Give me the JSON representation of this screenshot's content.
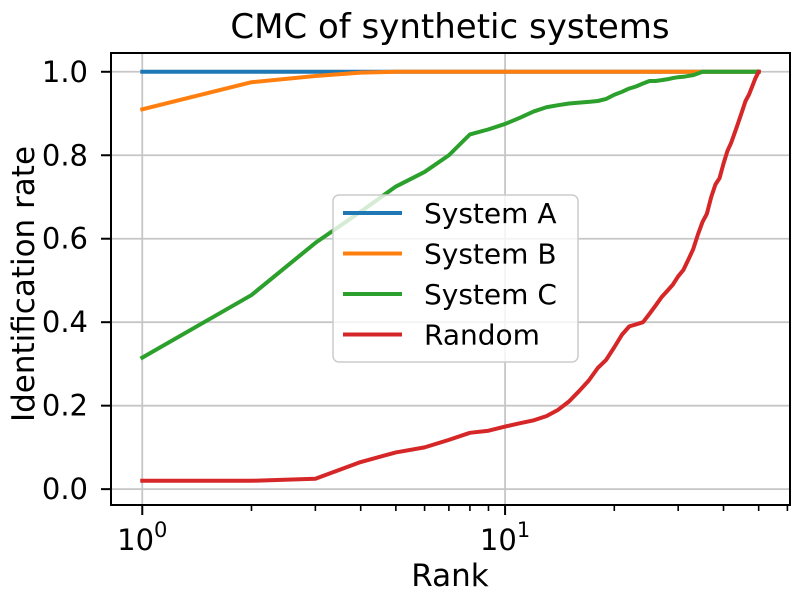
{
  "chart_data": {
    "type": "line",
    "title": "CMC of synthetic systems",
    "xlabel": "Rank",
    "ylabel": "Identification rate",
    "xscale": "log",
    "xlim": [
      0.82,
      61
    ],
    "ylim": [
      -0.038,
      1.045
    ],
    "grid": true,
    "grid_color": "#c6c6c6",
    "axis_color": "#000000",
    "x_major_ticks": [
      {
        "value": 1,
        "base": "10",
        "exp": "0"
      },
      {
        "value": 10,
        "base": "10",
        "exp": "1"
      }
    ],
    "x_minor_ticks": [
      2,
      3,
      4,
      5,
      6,
      7,
      8,
      9,
      20,
      30,
      40,
      50,
      60
    ],
    "y_ticks": [
      {
        "value": 0.0,
        "label": "0.0"
      },
      {
        "value": 0.2,
        "label": "0.2"
      },
      {
        "value": 0.4,
        "label": "0.4"
      },
      {
        "value": 0.6,
        "label": "0.6"
      },
      {
        "value": 0.8,
        "label": "0.8"
      },
      {
        "value": 1.0,
        "label": "1.0"
      }
    ],
    "legend": {
      "position": "center",
      "border_color": "#cccccc",
      "background": "rgba(255,255,255,0.8)"
    },
    "x": [
      1,
      2,
      3,
      4,
      5,
      6,
      7,
      8,
      9,
      10,
      11,
      12,
      13,
      14,
      15,
      16,
      17,
      18,
      19,
      20,
      21,
      22,
      23,
      24,
      25,
      26,
      27,
      28,
      29,
      30,
      31,
      32,
      33,
      34,
      35,
      36,
      37,
      38,
      39,
      40,
      41,
      42,
      43,
      44,
      45,
      46,
      47,
      48,
      49,
      50
    ],
    "series": [
      {
        "name": "System A",
        "color": "#1f77b4",
        "values": [
          1.0,
          1.0,
          1.0,
          1.0,
          1.0,
          1.0,
          1.0,
          1.0,
          1.0,
          1.0,
          1.0,
          1.0,
          1.0,
          1.0,
          1.0,
          1.0,
          1.0,
          1.0,
          1.0,
          1.0,
          1.0,
          1.0,
          1.0,
          1.0,
          1.0,
          1.0,
          1.0,
          1.0,
          1.0,
          1.0,
          1.0,
          1.0,
          1.0,
          1.0,
          1.0,
          1.0,
          1.0,
          1.0,
          1.0,
          1.0,
          1.0,
          1.0,
          1.0,
          1.0,
          1.0,
          1.0,
          1.0,
          1.0,
          1.0,
          1.0
        ]
      },
      {
        "name": "System B",
        "color": "#ff7f0e",
        "values": [
          0.91,
          0.975,
          0.99,
          0.998,
          1.0,
          1.0,
          1.0,
          1.0,
          1.0,
          1.0,
          1.0,
          1.0,
          1.0,
          1.0,
          1.0,
          1.0,
          1.0,
          1.0,
          1.0,
          1.0,
          1.0,
          1.0,
          1.0,
          1.0,
          1.0,
          1.0,
          1.0,
          1.0,
          1.0,
          1.0,
          1.0,
          1.0,
          1.0,
          1.0,
          1.0,
          1.0,
          1.0,
          1.0,
          1.0,
          1.0,
          1.0,
          1.0,
          1.0,
          1.0,
          1.0,
          1.0,
          1.0,
          1.0,
          1.0,
          1.0
        ]
      },
      {
        "name": "System C",
        "color": "#2ca02c",
        "values": [
          0.315,
          0.465,
          0.59,
          0.665,
          0.725,
          0.76,
          0.8,
          0.85,
          0.862,
          0.875,
          0.89,
          0.905,
          0.915,
          0.92,
          0.924,
          0.926,
          0.928,
          0.93,
          0.935,
          0.945,
          0.952,
          0.96,
          0.965,
          0.972,
          0.978,
          0.978,
          0.98,
          0.982,
          0.985,
          0.987,
          0.988,
          0.99,
          0.992,
          0.996,
          1.0,
          1.0,
          1.0,
          1.0,
          1.0,
          1.0,
          1.0,
          1.0,
          1.0,
          1.0,
          1.0,
          1.0,
          1.0,
          1.0,
          1.0,
          1.0
        ]
      },
      {
        "name": "Random",
        "color": "#d62728",
        "values": [
          0.02,
          0.02,
          0.025,
          0.065,
          0.088,
          0.1,
          0.118,
          0.135,
          0.14,
          0.15,
          0.158,
          0.165,
          0.175,
          0.19,
          0.21,
          0.235,
          0.26,
          0.29,
          0.31,
          0.34,
          0.37,
          0.39,
          0.395,
          0.4,
          0.42,
          0.44,
          0.46,
          0.475,
          0.49,
          0.51,
          0.525,
          0.55,
          0.575,
          0.61,
          0.64,
          0.66,
          0.7,
          0.73,
          0.745,
          0.78,
          0.81,
          0.83,
          0.855,
          0.88,
          0.905,
          0.93,
          0.945,
          0.965,
          0.985,
          1.0
        ]
      }
    ]
  }
}
